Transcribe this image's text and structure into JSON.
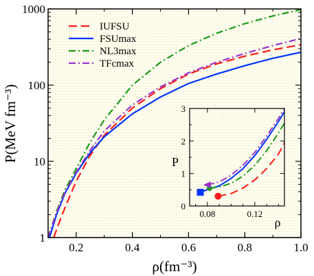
{
  "chart_data": [
    {
      "type": "line",
      "role": "main",
      "xlabel": "ρ(fm⁻³)",
      "ylabel": "P(MeV fm⁻³)",
      "xlim": [
        0.1,
        1.0
      ],
      "ylim": [
        1,
        1000
      ],
      "yscale": "log",
      "x_ticks": [
        0.2,
        0.4,
        0.6,
        0.8,
        1.0
      ],
      "x_tick_labels": [
        "0.2",
        "0.4",
        "0.6",
        "0.8",
        "1.0"
      ],
      "y_ticks": [
        1,
        10,
        100,
        1000
      ],
      "y_tick_labels": [
        "1",
        "10",
        "100",
        "1000"
      ],
      "background": "#fffef0",
      "legend_position": "top-left",
      "series": [
        {
          "name": "IUFSU",
          "color": "#ff1a1a",
          "dash": "long-dash",
          "x": [
            0.12,
            0.15,
            0.2,
            0.25,
            0.3,
            0.4,
            0.5,
            0.6,
            0.7,
            0.8,
            0.9,
            1.0
          ],
          "y": [
            1.0,
            2.0,
            5.5,
            12.0,
            22.0,
            50.0,
            90.0,
            140.0,
            190.0,
            240.0,
            290.0,
            340.0
          ]
        },
        {
          "name": "FSUmax",
          "color": "#0033ff",
          "dash": "solid",
          "x": [
            0.105,
            0.13,
            0.16,
            0.2,
            0.25,
            0.3,
            0.4,
            0.5,
            0.6,
            0.7,
            0.8,
            0.9,
            1.0
          ],
          "y": [
            1.0,
            2.0,
            3.8,
            7.0,
            13.0,
            21.0,
            42.0,
            70.0,
            105.0,
            140.0,
            180.0,
            225.0,
            270.0
          ]
        },
        {
          "name": "NL3max",
          "color": "#1a9a1a",
          "dash": "dash-dot",
          "x": [
            0.1,
            0.13,
            0.16,
            0.2,
            0.25,
            0.3,
            0.4,
            0.5,
            0.6,
            0.7,
            0.8,
            0.9,
            1.0
          ],
          "y": [
            1.0,
            2.2,
            4.2,
            8.0,
            18.0,
            35.0,
            100.0,
            200.0,
            330.0,
            480.0,
            640.0,
            810.0,
            980.0
          ]
        },
        {
          "name": "TFcmax",
          "color": "#9933cc",
          "dash": "dash-dot",
          "x": [
            0.1,
            0.13,
            0.16,
            0.2,
            0.25,
            0.3,
            0.4,
            0.5,
            0.6,
            0.7,
            0.8,
            0.9,
            1.0
          ],
          "y": [
            1.0,
            2.1,
            3.9,
            7.2,
            14.0,
            25.0,
            55.0,
            95.0,
            145.0,
            200.0,
            260.0,
            330.0,
            410.0
          ]
        }
      ]
    },
    {
      "type": "line",
      "role": "inset",
      "xlabel": "ρ",
      "ylabel": "P",
      "xlim": [
        0.065,
        0.145
      ],
      "ylim": [
        0,
        3
      ],
      "x_ticks": [
        0.08,
        0.12
      ],
      "x_tick_labels": [
        "0.08",
        "0.12"
      ],
      "y_ticks": [
        0,
        1,
        2,
        3
      ],
      "y_tick_labels": [
        "0",
        "1",
        "2",
        "3"
      ],
      "series": [
        {
          "name": "IUFSU",
          "color": "#ff1a1a",
          "dash": "long-dash",
          "x": [
            0.089,
            0.1,
            0.11,
            0.12,
            0.13,
            0.14,
            0.145
          ],
          "y": [
            0.3,
            0.38,
            0.55,
            0.8,
            1.15,
            1.6,
            1.95
          ],
          "marker": {
            "shape": "circle",
            "x": 0.089,
            "y": 0.3
          }
        },
        {
          "name": "FSUmax",
          "color": "#0033ff",
          "dash": "solid",
          "x": [
            0.074,
            0.08,
            0.09,
            0.1,
            0.11,
            0.12,
            0.13,
            0.14,
            0.145
          ],
          "y": [
            0.42,
            0.5,
            0.62,
            0.85,
            1.15,
            1.55,
            2.05,
            2.6,
            2.9
          ],
          "marker": {
            "shape": "square",
            "x": 0.074,
            "y": 0.42
          }
        },
        {
          "name": "NL3max",
          "color": "#1a9a1a",
          "dash": "dash-dot",
          "x": [
            0.082,
            0.09,
            0.1,
            0.11,
            0.12,
            0.13,
            0.14,
            0.145
          ],
          "y": [
            0.55,
            0.58,
            0.7,
            0.92,
            1.25,
            1.7,
            2.25,
            2.55
          ],
          "marker": {
            "shape": "diamond",
            "x": 0.082,
            "y": 0.55
          }
        },
        {
          "name": "TFcmax",
          "color": "#9933cc",
          "dash": "dash-dot",
          "x": [
            0.08,
            0.09,
            0.1,
            0.11,
            0.12,
            0.13,
            0.14,
            0.145
          ],
          "y": [
            0.65,
            0.74,
            0.95,
            1.25,
            1.65,
            2.15,
            2.7,
            3.0
          ],
          "marker": {
            "shape": "triangle-left",
            "x": 0.08,
            "y": 0.65
          }
        }
      ]
    }
  ]
}
